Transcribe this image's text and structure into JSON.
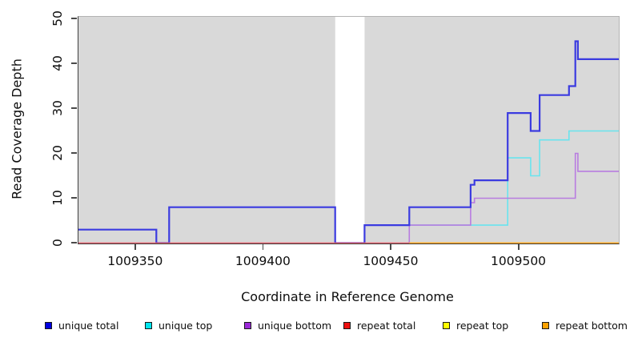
{
  "figure": {
    "background": "#ffffff"
  },
  "axes": {
    "xlabel": "Coordinate in Reference Genome",
    "ylabel": "Read Coverage Depth"
  },
  "chart_data": {
    "type": "line",
    "subtype": "step",
    "title": "",
    "xlabel": "Coordinate in Reference Genome",
    "ylabel": "Read Coverage Depth",
    "xlim": [
      1009327.5,
      1009539
    ],
    "ylim": [
      0,
      50
    ],
    "x_ticks": [
      1009350,
      1009400,
      1009450,
      1009500
    ],
    "y_ticks": [
      0,
      10,
      20,
      30,
      40,
      50
    ],
    "grid": "off",
    "legend_position": "bottom",
    "plot_background": "#d9d9d9",
    "gap_region": {
      "x_start": 1009428,
      "x_end": 1009439.5,
      "fill": "#ffffff"
    },
    "draw_order": [
      "unique_top",
      "unique_bottom",
      "unique_total",
      "repeat_total",
      "repeat_top",
      "repeat_bottom"
    ],
    "series": [
      {
        "id": "unique_total",
        "name": "unique total",
        "line_color": "#3b3be0",
        "legend_color": "#0000e0",
        "line_width": 2.2,
        "points": [
          [
            1009327.5,
            3
          ],
          [
            1009358,
            3
          ],
          [
            1009358,
            0
          ],
          [
            1009363,
            0
          ],
          [
            1009363,
            8
          ],
          [
            1009428,
            8
          ],
          [
            1009428,
            0
          ],
          [
            1009439.5,
            0
          ],
          [
            1009439.5,
            4
          ],
          [
            1009457,
            4
          ],
          [
            1009457,
            8
          ],
          [
            1009481,
            8
          ],
          [
            1009481,
            13
          ],
          [
            1009482.5,
            13
          ],
          [
            1009482.5,
            14
          ],
          [
            1009495.5,
            14
          ],
          [
            1009495.5,
            29
          ],
          [
            1009504.5,
            29
          ],
          [
            1009504.5,
            25
          ],
          [
            1009508,
            25
          ],
          [
            1009508,
            33
          ],
          [
            1009519.5,
            33
          ],
          [
            1009519.5,
            35
          ],
          [
            1009522,
            35
          ],
          [
            1009522,
            45
          ],
          [
            1009523,
            45
          ],
          [
            1009523,
            41
          ],
          [
            1009539,
            41
          ]
        ]
      },
      {
        "id": "unique_top",
        "name": "unique top",
        "line_color": "#69e4ee",
        "legend_color": "#00e5ee",
        "line_width": 1.6,
        "points": [
          [
            1009439.5,
            4
          ],
          [
            1009495.5,
            4
          ],
          [
            1009495.5,
            19
          ],
          [
            1009504.5,
            19
          ],
          [
            1009504.5,
            15
          ],
          [
            1009508,
            15
          ],
          [
            1009508,
            23
          ],
          [
            1009519.5,
            23
          ],
          [
            1009519.5,
            25
          ],
          [
            1009539,
            25
          ]
        ]
      },
      {
        "id": "unique_bottom",
        "name": "unique bottom",
        "line_color": "#b87ce0",
        "legend_color": "#9b28d8",
        "line_width": 1.6,
        "points": [
          [
            1009457,
            0
          ],
          [
            1009457,
            4
          ],
          [
            1009481,
            4
          ],
          [
            1009481,
            9
          ],
          [
            1009482.5,
            9
          ],
          [
            1009482.5,
            10
          ],
          [
            1009522,
            10
          ],
          [
            1009522,
            20
          ],
          [
            1009523,
            20
          ],
          [
            1009523,
            16
          ],
          [
            1009539,
            16
          ]
        ]
      },
      {
        "id": "repeat_total",
        "name": "repeat total",
        "line_color": "#e45a68",
        "legend_color": "#ee1111",
        "line_width": 1.6,
        "points": [
          [
            1009327.5,
            0
          ],
          [
            1009539,
            0
          ]
        ]
      },
      {
        "id": "repeat_top",
        "name": "repeat top",
        "line_color": "#ffff33",
        "legend_color": "#ffff00",
        "line_width": 1.6,
        "hidden_behind": "repeat_bottom",
        "points": [
          [
            1009457,
            0
          ],
          [
            1009539,
            0
          ]
        ]
      },
      {
        "id": "repeat_bottom",
        "name": "repeat bottom",
        "line_color": "#ffa319",
        "legend_color": "#ffa200",
        "line_width": 1.6,
        "points": [
          [
            1009457,
            0
          ],
          [
            1009539,
            0
          ]
        ]
      }
    ]
  },
  "legend": {
    "items": [
      {
        "label": "unique total",
        "color": "#0000e0"
      },
      {
        "label": "unique top",
        "color": "#00e5ee"
      },
      {
        "label": "unique bottom",
        "color": "#9b28d8"
      },
      {
        "label": "repeat total",
        "color": "#ee1111"
      },
      {
        "label": "repeat top",
        "color": "#ffff00"
      },
      {
        "label": "repeat bottom",
        "color": "#ffa200"
      }
    ]
  }
}
